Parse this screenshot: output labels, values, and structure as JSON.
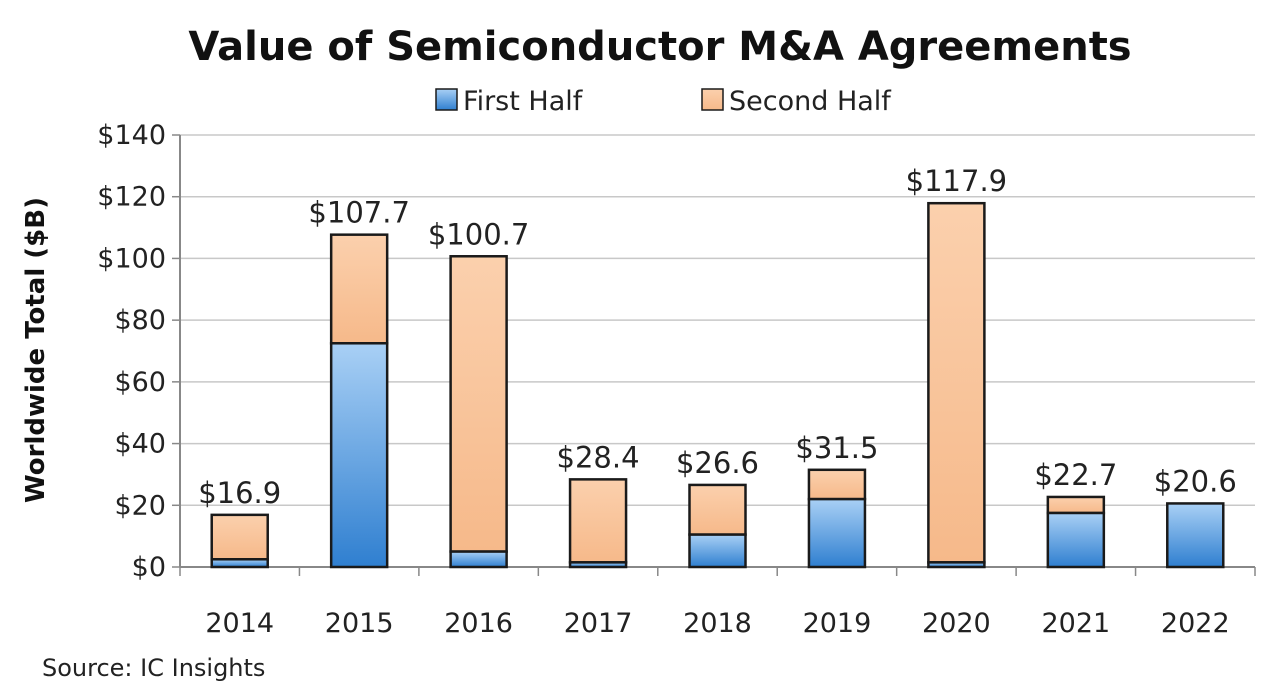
{
  "chart_data": {
    "type": "bar",
    "stacked": true,
    "title": "Value of Semiconductor M&A Agreements",
    "xlabel": "",
    "ylabel": "Worldwide Total ($B)",
    "ylim": [
      0,
      140
    ],
    "yticks": [
      "$0",
      "$20",
      "$40",
      "$60",
      "$80",
      "$100",
      "$120",
      "$140"
    ],
    "ytick_values": [
      0,
      20,
      40,
      60,
      80,
      100,
      120,
      140
    ],
    "grid": true,
    "legend_position": "top",
    "categories": [
      "2014",
      "2015",
      "2016",
      "2017",
      "2018",
      "2019",
      "2020",
      "2021",
      "2022"
    ],
    "series": [
      {
        "name": "First Half",
        "color": "#4a90d9",
        "values": [
          2.5,
          72.5,
          5,
          1.5,
          10.5,
          22,
          1.5,
          17.5,
          20.6
        ]
      },
      {
        "name": "Second Half",
        "color": "#f9c49a",
        "values": [
          14.4,
          35.2,
          95.7,
          26.9,
          16.1,
          9.5,
          116.4,
          5.2,
          0
        ]
      }
    ],
    "totals": [
      "$16.9",
      "$107.7",
      "$100.7",
      "$28.4",
      "$26.6",
      "$31.5",
      "$117.9",
      "$22.7",
      "$20.6"
    ],
    "total_values": [
      16.9,
      107.7,
      100.7,
      28.4,
      26.6,
      31.5,
      117.9,
      22.7,
      20.6
    ],
    "source": "Source: IC Insights"
  }
}
